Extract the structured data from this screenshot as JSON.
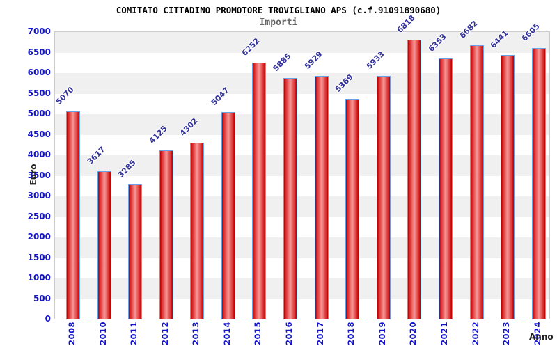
{
  "header": {
    "title": "COMITATO CITTADINO PROMOTORE TROVIGLIANO APS (c.f.91091890680)",
    "subtitle": "Importi"
  },
  "axes": {
    "y_label": "Euro",
    "x_label": "Anno"
  },
  "chart_data": {
    "type": "bar",
    "title": "COMITATO CITTADINO PROMOTORE TROVIGLIANO APS (c.f.91091890680)",
    "subtitle": "Importi",
    "xlabel": "Anno",
    "ylabel": "Euro",
    "categories": [
      "2008",
      "2010",
      "2011",
      "2012",
      "2013",
      "2014",
      "2015",
      "2016",
      "2017",
      "2018",
      "2019",
      "2020",
      "2021",
      "2022",
      "2023",
      "2024"
    ],
    "values": [
      5070,
      3617,
      3285,
      4125,
      4302,
      5047,
      6252,
      5885,
      5929,
      5369,
      5933,
      6818,
      6353,
      6682,
      6441,
      6605
    ],
    "ylim": [
      0,
      7000
    ],
    "ytick_step": 500,
    "legend": false,
    "grid": "alternating-horizontal-bands",
    "bar_labels_rotation_deg": -45,
    "xtick_rotation_deg": -90
  },
  "colors": {
    "bar_edge": "#b50000",
    "bar_center": "#f59a9a",
    "bar_border": "#6aa0e6",
    "tick_label": "#1414cc",
    "value_label": "#333399",
    "band_gray": "#f0f0f0",
    "band_white": "#ffffff",
    "plot_border": "#cccccc",
    "title_color": "#000000",
    "subtitle_color": "#666666"
  }
}
